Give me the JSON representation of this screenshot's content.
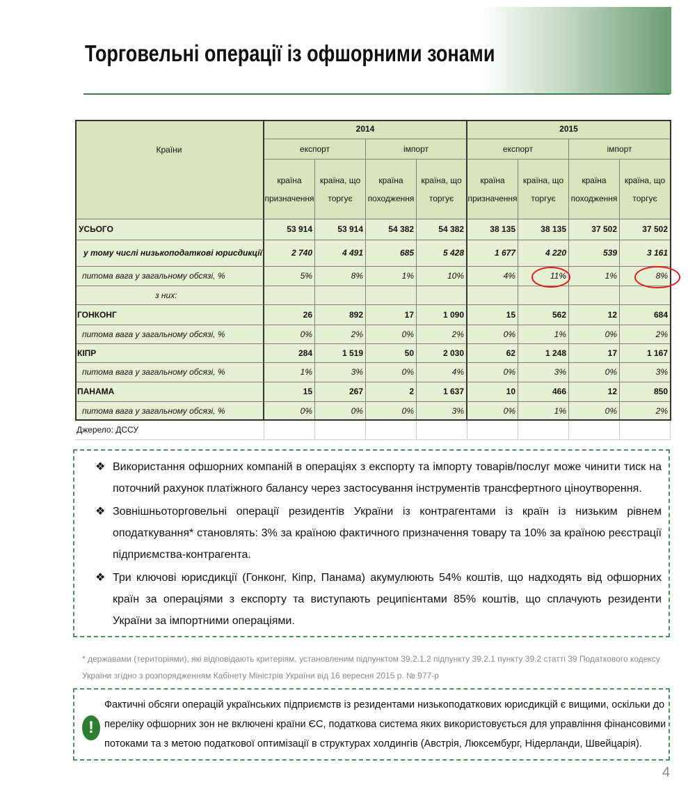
{
  "header": {
    "title": "Торговельні операції із офшорними зонами"
  },
  "table": {
    "col_header": "Країни",
    "years": [
      "2014",
      "2015"
    ],
    "flows": [
      "експорт",
      "імпорт",
      "експорт",
      "імпорт"
    ],
    "subheaders": [
      "країна призначення",
      "країна, що торгує",
      "країна походження",
      "країна, що торгує",
      "країна призначення",
      "країна, що торгує",
      "країна походження",
      "країна, що торгує"
    ],
    "rows": [
      {
        "label": "УСЬОГО",
        "values": [
          "53 914",
          "53 914",
          "54 382",
          "54 382",
          "38 135",
          "38 135",
          "37 502",
          "37 502"
        ]
      },
      {
        "label": "у тому числі низькоподаткові юрисдикції",
        "values": [
          "2 740",
          "4 491",
          "685",
          "5 428",
          "1 677",
          "4 220",
          "539",
          "3 161"
        ]
      },
      {
        "label": "питома вага у загальному обсязі, %",
        "values": [
          "5%",
          "8%",
          "1%",
          "10%",
          "4%",
          "11%",
          "1%",
          "8%"
        ]
      },
      {
        "label": "з них:"
      },
      {
        "label": "ГОНКОНГ",
        "values": [
          "26",
          "892",
          "17",
          "1 090",
          "15",
          "562",
          "12",
          "684"
        ]
      },
      {
        "label": "питома вага у загальному обсязі, %",
        "values": [
          "0%",
          "2%",
          "0%",
          "2%",
          "0%",
          "1%",
          "0%",
          "2%"
        ]
      },
      {
        "label": "КІПР",
        "values": [
          "284",
          "1 519",
          "50",
          "2 030",
          "62",
          "1 248",
          "17",
          "1 167"
        ]
      },
      {
        "label": "питома вага у загальному обсязі, %",
        "values": [
          "1%",
          "3%",
          "0%",
          "4%",
          "0%",
          "3%",
          "0%",
          "3%"
        ]
      },
      {
        "label": "ПАНАМА",
        "values": [
          "15",
          "267",
          "2",
          "1 637",
          "10",
          "466",
          "12",
          "850"
        ]
      },
      {
        "label": "питома вага у загальному обсязі, %",
        "values": [
          "0%",
          "0%",
          "0%",
          "3%",
          "0%",
          "1%",
          "0%",
          "2%"
        ]
      }
    ],
    "source": "Джерело: ДССУ"
  },
  "bullets": [
    "Використання офшорних компаній в операціях з експорту та імпорту товарів/послуг може чинити тиск на поточний рахунок платіжного балансу через застосування інструментів трансфертного ціноутворення.",
    "Зовнішньоторговельні операції резидентів України із контрагентами із країн із низьким рівнем оподаткування* становлять: 3% за країною фактичного призначення товару та 10% за країною реєстрації підприємства-контрагента.",
    "Три ключові юрисдикції (Гонконг, Кіпр, Панама) акумулюють 54% коштів, що надходять від офшорних країн за операціями з експорту та виступають реципієнтами 85% коштів, що сплачують резиденти України за імпортними операціями."
  ],
  "footnote": "* державами (територіями), які відповідають критеріям, установленим підпунктом 39.2.1.2 підпункту 39.2.1 пункту 39.2 статті 39 Податкового кодексу України згідно з розпорядженням Кабінету Міністрів України від 16 вересня 2015 р. № 977-р",
  "note": "Фактичні обсяги операцій українських підприємств із резидентами низькоподаткових юрисдикцій є вищими, оскільки до переліку офшорних зон не включені країни ЄС, податкова система яких використовується для управління фінансовими потоками та з метою податкової оптимізації в структурах холдингів (Австрія, Люксембург, Нідерланди, Швейцарія).",
  "page_number": "4"
}
